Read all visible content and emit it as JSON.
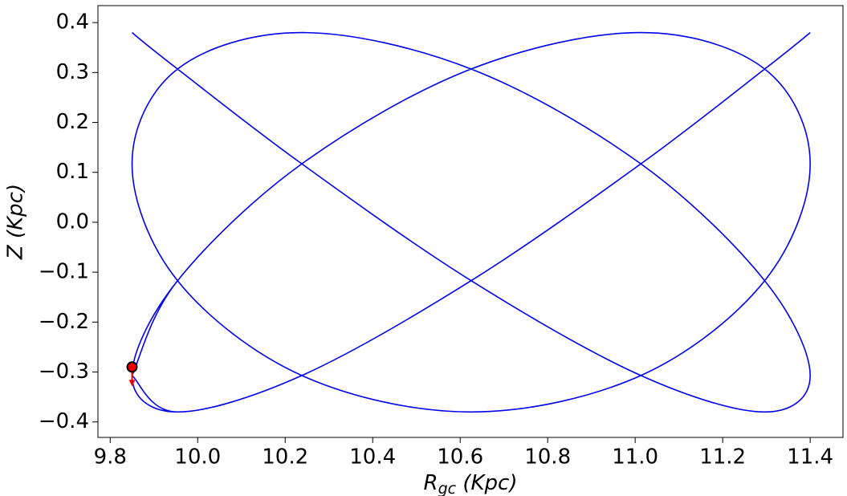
{
  "chart_data": {
    "type": "line",
    "x_label": {
      "main": "R",
      "sub": "gc",
      "rest": " (Kpc)"
    },
    "y_label": "Z (Kpc)",
    "xlim": [
      9.772,
      11.475
    ],
    "ylim": [
      -0.431,
      0.434
    ],
    "xticks": [
      9.8,
      {
        "value": 10,
        "label": "10.0"
      },
      10.2,
      10.4,
      10.6,
      10.8,
      {
        "value": 11,
        "label": "11.0"
      },
      11.2,
      11.4
    ],
    "yticks": [
      0.4,
      0.3,
      0.2,
      0.1,
      {
        "value": 0,
        "label": "0.0"
      },
      {
        "value": -0.1,
        "label": "−0.1"
      },
      {
        "value": -0.2,
        "label": "−0.2"
      },
      {
        "value": -0.3,
        "label": "−0.3"
      },
      {
        "value": -0.4,
        "label": "−0.4"
      }
    ],
    "series": [
      {
        "color": "#0000ee",
        "x": [
          9.85,
          9.954,
          10.238,
          10.625,
          11.013,
          11.296,
          11.4,
          11.296,
          11.013,
          10.625,
          10.238,
          9.954,
          9.85,
          9.954,
          10.238,
          10.625,
          11.013,
          11.296,
          11.4,
          11.296,
          11.013,
          10.625,
          10.238,
          9.954,
          9.85,
          9.954,
          10.238,
          10.625,
          11.013,
          11.296,
          11.4,
          11.296,
          11.013,
          10.625,
          10.238,
          9.954,
          9.85,
          9.954,
          10.238,
          10.625,
          11.013,
          11.296,
          11.4,
          11.296,
          11.013,
          10.625,
          10.238,
          9.954,
          9.85,
          9.954,
          10.238,
          10.625,
          11.013,
          11.296,
          11.4,
          11.296,
          11.013,
          10.625,
          10.238,
          9.954,
          9.85
        ],
        "y": [
          -0.307,
          -0.38,
          -0.307,
          -0.117,
          0.117,
          0.307,
          0.38,
          0.307,
          0.117,
          -0.117,
          -0.307,
          -0.38,
          -0.307,
          -0.117,
          0.117,
          0.307,
          0.38,
          0.307,
          0.117,
          -0.117,
          -0.307,
          -0.38,
          -0.307,
          -0.117,
          0.117,
          0.307,
          0.38,
          0.307,
          0.117,
          -0.117,
          -0.307,
          -0.38,
          -0.307,
          -0.117,
          0.117,
          0.307,
          0.38,
          0.307,
          0.117,
          -0.117,
          -0.307,
          -0.38,
          -0.307,
          -0.117,
          0.117,
          0.307,
          0.38,
          0.307,
          0.117,
          -0.117,
          -0.307,
          -0.38,
          -0.307,
          -0.117,
          0.117,
          0.307,
          0.38,
          0.307,
          0.117,
          -0.117,
          -0.307
        ]
      }
    ],
    "start_point": {
      "x": 9.85,
      "y": -0.29,
      "color": "#ee0000"
    }
  }
}
